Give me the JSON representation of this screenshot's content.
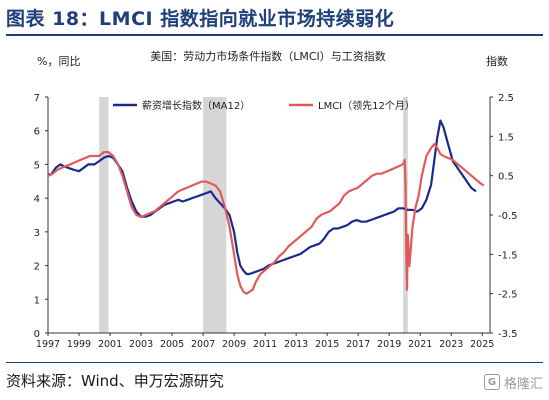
{
  "header": {
    "title": "图表 18：LMCI 指数指向就业市场持续弱化"
  },
  "footer": {
    "source": "资料来源：Wind、申万宏源研究",
    "watermark": "格隆汇"
  },
  "colors": {
    "navy": "#1e3f7a",
    "blue_series": "#1a2a8c",
    "red_series": "#e05a5a",
    "shade": "#d6d6d6"
  },
  "chart_data": {
    "type": "line",
    "title": "美国：劳动力市场条件指数（LMCI）与工资指数",
    "left_axis_label": "%，同比",
    "right_axis_label": "指数",
    "y_left": {
      "min": 0,
      "max": 7,
      "ticks": [
        "0",
        "1",
        "2",
        "3",
        "4",
        "5",
        "6",
        "7"
      ]
    },
    "y_right": {
      "min": -3.5,
      "max": 2.5,
      "ticks": [
        "-3.5",
        "-2.5",
        "-1.5",
        "-0.5",
        "0.5",
        "1.5",
        "2.5"
      ]
    },
    "x_range": [
      1997.0,
      2025.5
    ],
    "x_ticks": [
      "1997",
      "1999",
      "2001",
      "2003",
      "2005",
      "2007",
      "2009",
      "2011",
      "2013",
      "2015",
      "2017",
      "2019",
      "2021",
      "2023",
      "2025"
    ],
    "recessions": [
      [
        2000.3,
        2000.9
      ],
      [
        2007.0,
        2008.5
      ],
      [
        2019.9,
        2020.2
      ]
    ],
    "series": [
      {
        "name": "薪资增长指数（MA12）",
        "axis": "left",
        "x": [
          1997.0,
          1997.2,
          1997.5,
          1997.8,
          1998.0,
          1998.3,
          1998.6,
          1999.0,
          1999.3,
          1999.6,
          2000.0,
          2000.3,
          2000.6,
          2000.9,
          2001.2,
          2001.5,
          2001.8,
          2002.1,
          2002.4,
          2002.7,
          2003.0,
          2003.3,
          2003.6,
          2003.9,
          2004.2,
          2004.5,
          2004.8,
          2005.1,
          2005.4,
          2005.7,
          2006.0,
          2006.3,
          2006.6,
          2006.9,
          2007.2,
          2007.5,
          2007.8,
          2008.1,
          2008.4,
          2008.7,
          2009.0,
          2009.2,
          2009.4,
          2009.6,
          2009.8,
          2010.0,
          2010.3,
          2010.6,
          2010.9,
          2011.2,
          2011.5,
          2011.8,
          2012.1,
          2012.4,
          2012.7,
          2013.0,
          2013.3,
          2013.6,
          2013.9,
          2014.2,
          2014.5,
          2014.8,
          2015.1,
          2015.4,
          2015.7,
          2016.0,
          2016.3,
          2016.6,
          2016.9,
          2017.2,
          2017.5,
          2017.8,
          2018.1,
          2018.4,
          2018.7,
          2019.0,
          2019.3,
          2019.6,
          2019.9,
          2020.2,
          2020.5,
          2020.8,
          2021.1,
          2021.4,
          2021.7,
          2021.9,
          2022.1,
          2022.3,
          2022.5,
          2022.8,
          2023.1,
          2023.4,
          2023.7,
          2024.0,
          2024.3,
          2024.6
        ],
        "values": [
          4.7,
          4.7,
          4.9,
          5.0,
          4.95,
          4.9,
          4.85,
          4.8,
          4.9,
          5.0,
          5.0,
          5.1,
          5.2,
          5.25,
          5.2,
          5.0,
          4.8,
          4.3,
          3.9,
          3.6,
          3.45,
          3.45,
          3.5,
          3.6,
          3.7,
          3.8,
          3.85,
          3.9,
          3.95,
          3.9,
          3.95,
          4.0,
          4.05,
          4.1,
          4.15,
          4.2,
          4.0,
          3.85,
          3.7,
          3.5,
          3.0,
          2.4,
          2.0,
          1.85,
          1.75,
          1.75,
          1.8,
          1.85,
          1.9,
          2.0,
          2.05,
          2.1,
          2.15,
          2.2,
          2.25,
          2.3,
          2.35,
          2.45,
          2.55,
          2.6,
          2.65,
          2.8,
          3.0,
          3.1,
          3.1,
          3.15,
          3.2,
          3.3,
          3.35,
          3.3,
          3.3,
          3.35,
          3.4,
          3.45,
          3.5,
          3.55,
          3.6,
          3.7,
          3.7,
          3.65,
          3.65,
          3.6,
          3.7,
          3.95,
          4.4,
          5.1,
          5.8,
          6.3,
          6.1,
          5.6,
          5.1,
          4.9,
          4.7,
          4.5,
          4.3,
          4.2
        ]
      },
      {
        "name": "LMCI（领先12个月）",
        "axis": "right",
        "x": [
          1997.0,
          1997.3,
          1997.6,
          1997.9,
          1998.2,
          1998.5,
          1998.8,
          1999.1,
          1999.4,
          1999.7,
          2000.0,
          2000.3,
          2000.6,
          2000.9,
          2001.2,
          2001.5,
          2001.8,
          2002.1,
          2002.4,
          2002.7,
          2003.0,
          2003.3,
          2003.6,
          2003.9,
          2004.2,
          2004.5,
          2004.8,
          2005.1,
          2005.4,
          2005.7,
          2006.0,
          2006.3,
          2006.6,
          2006.9,
          2007.2,
          2007.5,
          2007.8,
          2008.1,
          2008.4,
          2008.7,
          2009.0,
          2009.2,
          2009.4,
          2009.6,
          2009.8,
          2010.0,
          2010.2,
          2010.4,
          2010.7,
          2011.0,
          2011.3,
          2011.6,
          2011.9,
          2012.2,
          2012.5,
          2012.8,
          2013.1,
          2013.4,
          2013.7,
          2014.0,
          2014.3,
          2014.6,
          2014.9,
          2015.2,
          2015.5,
          2015.8,
          2016.1,
          2016.4,
          2016.7,
          2017.0,
          2017.3,
          2017.6,
          2017.9,
          2018.2,
          2018.5,
          2018.8,
          2019.1,
          2019.4,
          2019.7,
          2019.9,
          2020.0,
          2020.05,
          2020.1,
          2020.15,
          2020.2,
          2020.3,
          2020.5,
          2020.7,
          2020.9,
          2021.1,
          2021.4,
          2021.7,
          2021.9,
          2022.1,
          2022.3,
          2022.5,
          2022.8,
          2023.1,
          2023.4,
          2023.7,
          2024.0,
          2024.3,
          2024.6,
          2024.9,
          2025.1
        ],
        "values": [
          0.5,
          0.55,
          0.65,
          0.7,
          0.75,
          0.8,
          0.85,
          0.9,
          0.95,
          1.0,
          1.0,
          1.0,
          1.1,
          1.1,
          1.0,
          0.8,
          0.5,
          0.1,
          -0.3,
          -0.5,
          -0.55,
          -0.5,
          -0.45,
          -0.4,
          -0.3,
          -0.2,
          -0.1,
          0.0,
          0.1,
          0.15,
          0.2,
          0.25,
          0.3,
          0.35,
          0.35,
          0.3,
          0.25,
          0.1,
          -0.3,
          -0.8,
          -1.5,
          -2.0,
          -2.3,
          -2.45,
          -2.5,
          -2.45,
          -2.4,
          -2.2,
          -2.0,
          -1.9,
          -1.8,
          -1.7,
          -1.55,
          -1.45,
          -1.3,
          -1.2,
          -1.1,
          -1.0,
          -0.9,
          -0.8,
          -0.6,
          -0.5,
          -0.45,
          -0.4,
          -0.3,
          -0.2,
          0.0,
          0.1,
          0.15,
          0.2,
          0.3,
          0.4,
          0.5,
          0.55,
          0.55,
          0.6,
          0.65,
          0.7,
          0.75,
          0.8,
          0.9,
          0.3,
          -1.5,
          -2.4,
          -1.0,
          -1.8,
          -0.8,
          -0.3,
          0.0,
          0.5,
          1.0,
          1.2,
          1.3,
          1.2,
          1.05,
          1.0,
          0.95,
          0.9,
          0.8,
          0.7,
          0.6,
          0.5,
          0.4,
          0.3,
          0.25
        ]
      }
    ]
  }
}
